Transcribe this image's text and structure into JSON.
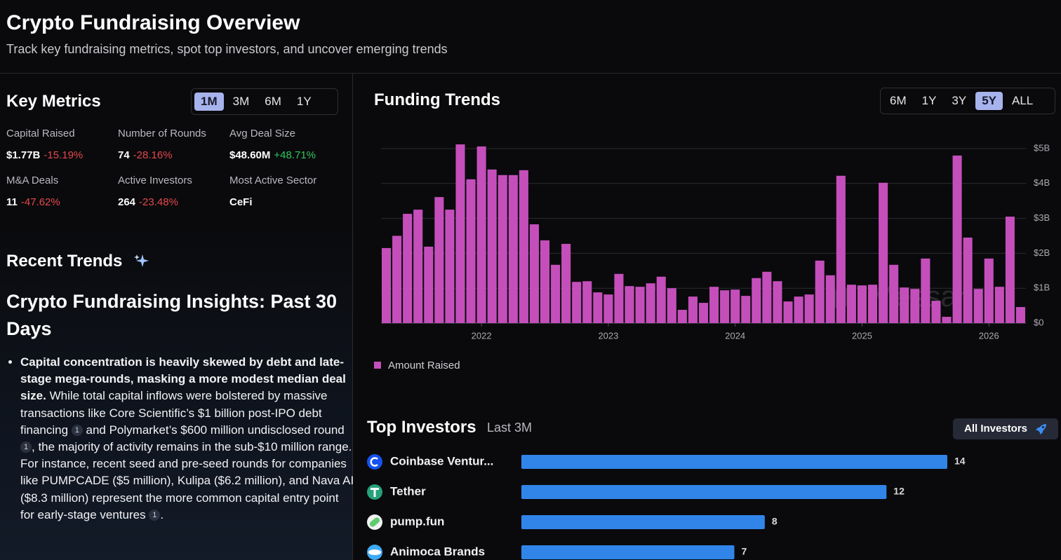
{
  "header": {
    "title": "Crypto Fundraising Overview",
    "subtitle": "Track key fundraising metrics, spot top investors, and uncover emerging trends"
  },
  "key_metrics": {
    "title": "Key Metrics",
    "periods": [
      "1M",
      "3M",
      "6M",
      "1Y"
    ],
    "active_period": 0,
    "items": [
      {
        "label": "Capital Raised",
        "value": "$1.77B",
        "change": "-15.19%",
        "direction": "down"
      },
      {
        "label": "Number of Rounds",
        "value": "74",
        "change": "-28.16%",
        "direction": "down"
      },
      {
        "label": "Avg Deal Size",
        "value": "$48.60M",
        "change": "+48.71%",
        "direction": "up"
      },
      {
        "label": "M&A Deals",
        "value": "11",
        "change": "-47.62%",
        "direction": "down"
      },
      {
        "label": "Active Investors",
        "value": "264",
        "change": "-23.48%",
        "direction": "down"
      },
      {
        "label": "Most Active Sector",
        "value": "CeFi"
      }
    ]
  },
  "recent_trends": {
    "title": "Recent Trends",
    "heading": "Crypto Fundraising Insights: Past 30 Days",
    "bullets": [
      {
        "segments": [
          {
            "text": "Capital concentration is heavily skewed by debt and late-stage mega-rounds, masking a more modest median deal size.",
            "bold": true
          },
          {
            "text": " While total capital inflows were bolstered by massive transactions like Core Scientific’s $1 billion post-IPO debt financing "
          },
          {
            "cite": 1
          },
          {
            "text": " and Polymarket’s $600 million undisclosed round "
          },
          {
            "cite": 1
          },
          {
            "text": ", the majority of activity remains in the sub-$10 million range. For instance, recent seed and pre-seed rounds for companies like PUMPCADE ($5 million), Kulipa ($6.2 million), and Nava AI ($8.3 million) represent the more common capital entry point for early-stage ventures "
          },
          {
            "cite": 1
          },
          {
            "text": "."
          }
        ]
      }
    ]
  },
  "funding_trends": {
    "title": "Funding Trends",
    "periods": [
      "6M",
      "1Y",
      "3Y",
      "5Y",
      "ALL"
    ],
    "active_period": 3,
    "watermark": "Messari",
    "chart_data": {
      "type": "bar",
      "categories": [
        null,
        null,
        null,
        null,
        null,
        null,
        null,
        null,
        null,
        "2022",
        null,
        null,
        null,
        null,
        null,
        null,
        null,
        null,
        null,
        null,
        null,
        "2023",
        null,
        null,
        null,
        null,
        null,
        null,
        null,
        null,
        null,
        null,
        null,
        "2024",
        null,
        null,
        null,
        null,
        null,
        null,
        null,
        null,
        null,
        null,
        null,
        "2025",
        null,
        null,
        null,
        null,
        null,
        null,
        null,
        null,
        null,
        null,
        null,
        "2026",
        null,
        null,
        null
      ],
      "series": [
        {
          "name": "Amount Raised",
          "color": "#c44fbb",
          "values": [
            2.15,
            2.5,
            3.13,
            3.25,
            2.19,
            3.61,
            3.25,
            5.12,
            4.12,
            5.06,
            4.4,
            4.24,
            4.24,
            4.38,
            2.83,
            2.37,
            1.67,
            2.27,
            1.18,
            1.2,
            0.88,
            0.82,
            1.41,
            1.06,
            1.04,
            1.14,
            1.33,
            1.0,
            0.38,
            0.76,
            0.58,
            1.04,
            0.94,
            0.96,
            0.78,
            1.29,
            1.47,
            1.2,
            0.62,
            0.76,
            0.82,
            1.79,
            1.37,
            4.22,
            1.1,
            1.08,
            1.1,
            4.02,
            1.67,
            1.02,
            0.98,
            1.85,
            0.64,
            0.18,
            4.8,
            2.45,
            0.98,
            1.85,
            1.04,
            3.05,
            0.46
          ]
        }
      ],
      "ylim": [
        0,
        5.3
      ],
      "yticks": [
        {
          "value": 0,
          "label": "$0"
        },
        {
          "value": 1,
          "label": "$1B"
        },
        {
          "value": 2,
          "label": "$2B"
        },
        {
          "value": 3,
          "label": "$3B"
        },
        {
          "value": 4,
          "label": "$4B"
        },
        {
          "value": 5,
          "label": "$5B"
        }
      ],
      "grid": true,
      "legend": "bottom-left"
    }
  },
  "top_investors": {
    "title": "Top Investors",
    "subtitle": "Last 3M",
    "button": "All Investors",
    "chart_data": {
      "type": "bar",
      "orientation": "horizontal",
      "categories": [
        "Coinbase Ventur...",
        "Tether",
        "pump.fun",
        "Animoca Brands"
      ],
      "values": [
        14,
        12,
        8,
        7
      ],
      "color": "#3185e9"
    }
  }
}
